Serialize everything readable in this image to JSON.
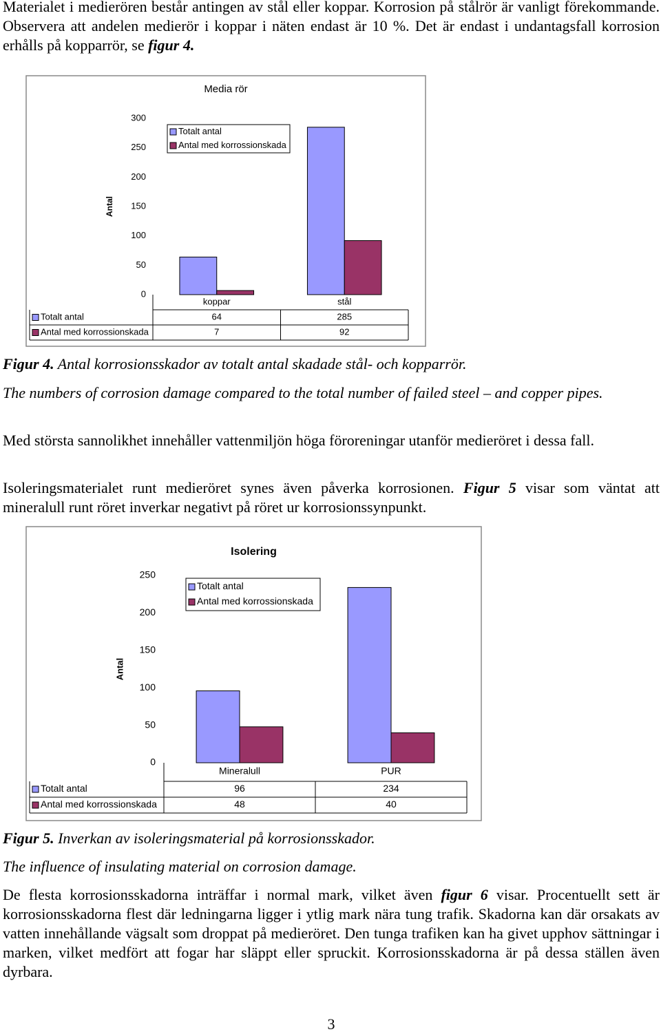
{
  "document": {
    "intro": {
      "text": "Materialet i medierören består antingen av stål eller koppar. Korrosion på stålrör är vanligt förekommande. Observera att andelen medierör i koppar i näten endast är 10 %. Det är endast i undantagsfall korrosion erhålls på kopparrör, se ",
      "ref": "figur 4."
    },
    "figure4_caption": {
      "label": "Figur 4.",
      "text": " Antal korrosionsskador av totalt antal skadade stål- och kopparrör.",
      "english": "The numbers of corrosion damage compared to the total number of failed steel – and copper pipes."
    },
    "para2": "Med största sannolikhet innehåller vattenmiljön höga föroreningar utanför medieröret i dessa fall.",
    "para3": {
      "text": "Isoleringsmaterialet runt medieröret synes även påverka korrosionen. ",
      "ref": "Figur 5",
      "after": " visar som väntat att mineralull runt röret inverkar negativt på röret ur korrosionssynpunkt."
    },
    "figure5_caption": {
      "label": "Figur 5.",
      "text": " Inverkan av isoleringsmaterial på korrosionsskador.",
      "english": "The influence of insulating material on corrosion damage."
    },
    "para4": {
      "text": "De flesta korrosionsskadorna inträffar i normal mark, vilket även ",
      "ref": "figur 6",
      "after": " visar. Procentuellt sett är korrosionsskadorna flest där ledningarna ligger i ytlig mark nära tung trafik. Skadorna kan där orsakats av vatten innehållande vägsalt som droppat på medieröret. Den tunga trafiken kan ha givet upphov sättningar i marken, vilket medfört att fogar har släppt eller spruckit. Korrosionsskadorna är på dessa ställen även dyrbara."
    },
    "page_number": "3"
  },
  "chart_data": [
    {
      "type": "bar",
      "title": "Media rör",
      "y_label": "Antal",
      "categories": [
        "koppar",
        "stål"
      ],
      "series": [
        {
          "name": "Totalt antal",
          "color": "#9999ff",
          "values": [
            64,
            285
          ]
        },
        {
          "name": "Antal med korrossionskada",
          "color": "#993366",
          "values": [
            7,
            92
          ]
        }
      ],
      "ylim": [
        0,
        300
      ],
      "yticks": [
        0,
        50,
        100,
        150,
        200,
        250,
        300
      ],
      "grid": false,
      "legend": "top-left",
      "data_table": true
    },
    {
      "type": "bar",
      "title": "Isolering",
      "y_label": "Antal",
      "categories": [
        "Mineralull",
        "PUR"
      ],
      "series": [
        {
          "name": "Totalt antal",
          "color": "#9999ff",
          "values": [
            96,
            234
          ]
        },
        {
          "name": "Antal med korrossionskada",
          "color": "#993366",
          "values": [
            48,
            40
          ]
        }
      ],
      "ylim": [
        0,
        250
      ],
      "yticks": [
        0,
        50,
        100,
        150,
        200,
        250
      ],
      "grid": false,
      "legend": "top-left",
      "data_table": true
    }
  ]
}
